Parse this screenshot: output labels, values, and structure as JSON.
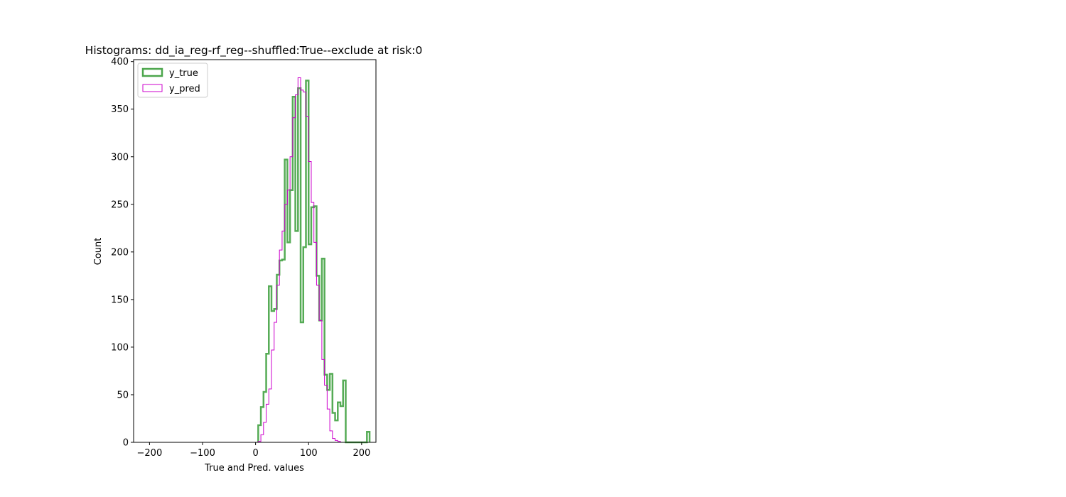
{
  "chart_data": {
    "type": "histogram",
    "title": "Histograms: dd_ia_reg-rf_reg--shuffled:True--exclude at risk:0",
    "xlabel": "True and Pred. values",
    "ylabel": "Count",
    "xlim": [
      -230,
      227
    ],
    "ylim": [
      0,
      402
    ],
    "xticks": [
      -200,
      -100,
      0,
      100,
      200
    ],
    "yticks": [
      0,
      50,
      100,
      150,
      200,
      250,
      300,
      350,
      400
    ],
    "grid": false,
    "legend_position": "top-left",
    "series": [
      {
        "name": "y_true",
        "color": "#4ca64c",
        "style": "step-thick",
        "edges": [
          5,
          10,
          15,
          20,
          25,
          30,
          35,
          40,
          45,
          50,
          55,
          60,
          65,
          70,
          75,
          80,
          85,
          90,
          95,
          100,
          105,
          110,
          115,
          120,
          125,
          130,
          135,
          140,
          145,
          150,
          155,
          160,
          165,
          170,
          175,
          180,
          185,
          190,
          195,
          200,
          205,
          210,
          215
        ],
        "counts": [
          18,
          37,
          53,
          93,
          164,
          138,
          140,
          176,
          191,
          192,
          297,
          210,
          265,
          363,
          222,
          372,
          126,
          205,
          380,
          208,
          247,
          248,
          175,
          128,
          193,
          71,
          55,
          72,
          31,
          23,
          42,
          38,
          65,
          0,
          0,
          0,
          0,
          0,
          0,
          0,
          0,
          11
        ]
      },
      {
        "name": "y_pred",
        "color": "#cc00cc",
        "style": "step-thin",
        "edges": [
          5,
          10,
          15,
          20,
          25,
          30,
          35,
          40,
          45,
          50,
          55,
          60,
          65,
          70,
          75,
          80,
          85,
          90,
          95,
          100,
          105,
          110,
          115,
          120,
          125,
          130,
          135,
          140,
          145,
          150,
          155,
          160,
          165,
          170
        ],
        "counts": [
          1,
          8,
          21,
          40,
          56,
          97,
          126,
          165,
          202,
          222,
          250,
          265,
          300,
          341,
          365,
          383,
          370,
          368,
          342,
          295,
          252,
          210,
          165,
          128,
          87,
          60,
          35,
          12,
          4,
          2,
          1,
          0,
          0
        ]
      }
    ]
  }
}
